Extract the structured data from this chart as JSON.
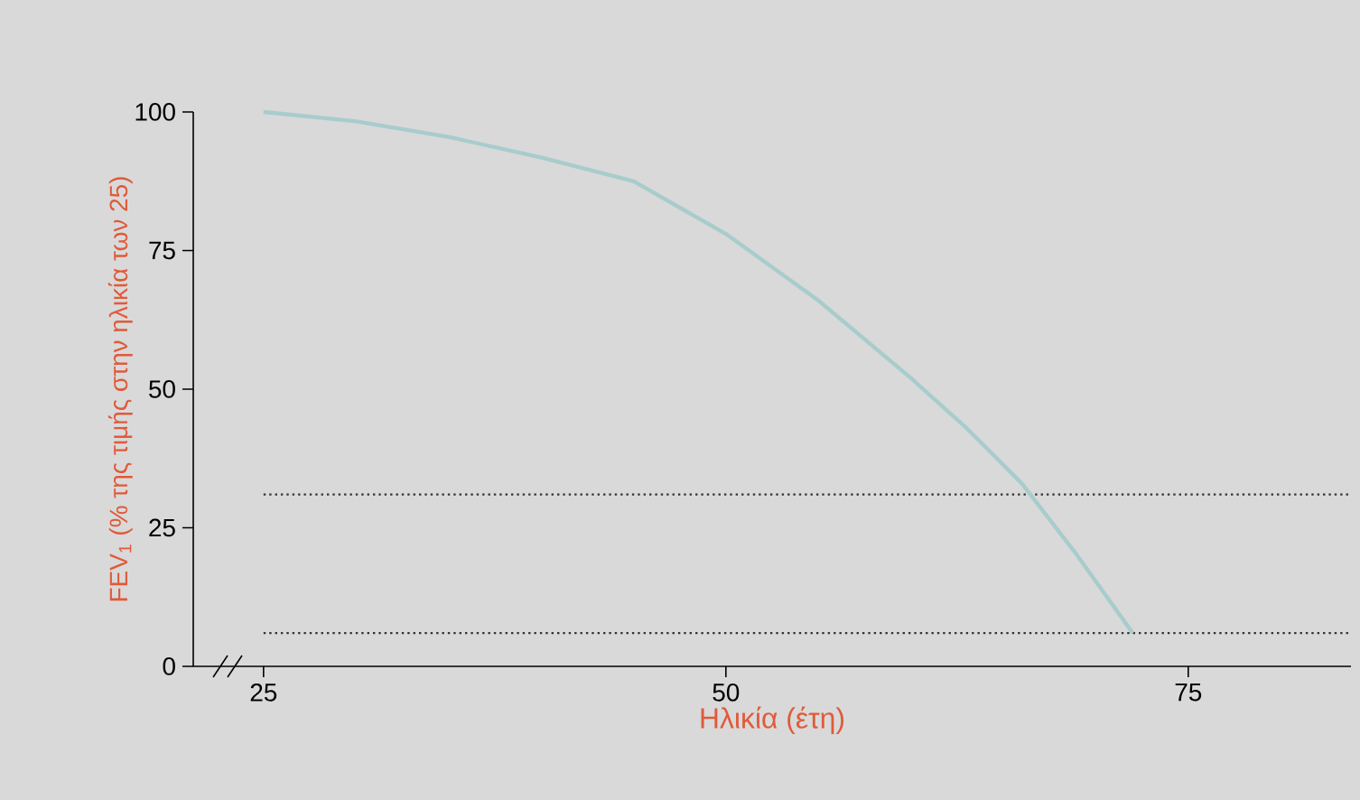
{
  "chart_data": {
    "type": "line",
    "xlabel": "Ηλικία (έτη)",
    "ylabel": "FEV$_{1}$ (% της τιμής στην ηλικία των 25)",
    "x": [
      25,
      30,
      35,
      40,
      45,
      50,
      55,
      60,
      63,
      66,
      69,
      72
    ],
    "series": [
      {
        "color": "#a8cccc",
        "values": [
          100,
          98.3,
          95.5,
          91.8,
          87.5,
          78,
          66,
          52,
          43,
          33,
          20,
          6
        ]
      }
    ],
    "xlim": [
      21.2,
      83.8
    ],
    "xticks": [
      25,
      50,
      75
    ],
    "ylim": [
      0,
      100
    ],
    "yticks": [
      0,
      25,
      50,
      75,
      100
    ],
    "ref_lines": [
      {
        "axis": "y",
        "value": 31,
        "line_style": "dotted",
        "color": "#333333"
      },
      {
        "axis": "y",
        "value": 6,
        "line_style": "dotted",
        "color": "#333333"
      }
    ],
    "grid": false,
    "legend": false,
    "marker": "none",
    "line_style": "solid"
  }
}
